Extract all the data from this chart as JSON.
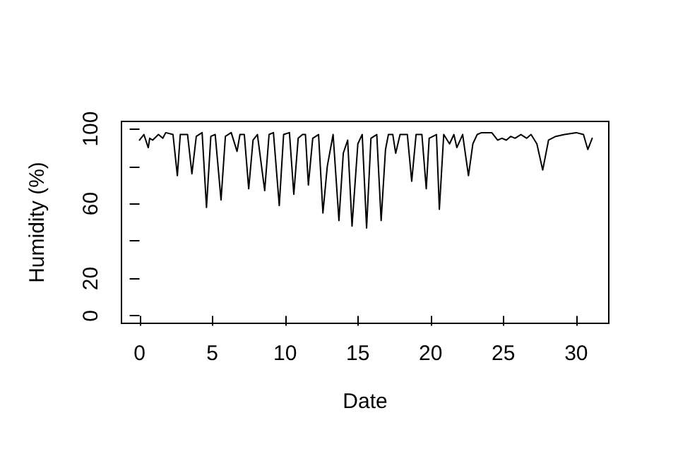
{
  "chart_data": {
    "type": "line",
    "xlabel": "Date",
    "ylabel": "Humidity (%)",
    "xlim": [
      -1.24,
      32.24
    ],
    "ylim": [
      -4,
      104
    ],
    "xticks": [
      0,
      5,
      10,
      15,
      20,
      25,
      30
    ],
    "yticks": [
      0,
      20,
      {
        "value": 40,
        "label": null
      },
      60,
      {
        "value": 80,
        "label": null
      },
      100
    ],
    "grid": false,
    "marker": "none",
    "line_style": "solid",
    "series": [
      {
        "color": "#000000",
        "x": [
          0,
          0.3,
          0.6,
          0.7,
          0.9,
          1.3,
          1.6,
          1.8,
          2.3,
          2.6,
          2.8,
          3.3,
          3.6,
          3.9,
          4.3,
          4.6,
          4.9,
          5.2,
          5.6,
          5.9,
          6.3,
          6.7,
          6.9,
          7.2,
          7.5,
          7.8,
          8.1,
          8.6,
          8.9,
          9.2,
          9.6,
          9.9,
          10.3,
          10.6,
          10.9,
          11.2,
          11.4,
          11.6,
          11.9,
          12.3,
          12.6,
          12.9,
          13.3,
          13.7,
          14.0,
          14.3,
          14.6,
          15.0,
          15.3,
          15.6,
          15.9,
          16.3,
          16.6,
          16.9,
          17.1,
          17.4,
          17.6,
          17.9,
          18.4,
          18.7,
          19.0,
          19.4,
          19.7,
          19.9,
          20.4,
          20.6,
          20.9,
          21.3,
          21.6,
          21.8,
          22.2,
          22.6,
          22.9,
          23.2,
          23.5,
          24.2,
          24.6,
          24.9,
          25.2,
          25.5,
          25.8,
          26.2,
          26.6,
          26.9,
          27.3,
          27.7,
          28.1,
          28.6,
          29.2,
          30.0,
          30.5,
          30.8,
          31.1
        ],
        "values": [
          94,
          97,
          90,
          95,
          94,
          97,
          95,
          98,
          97,
          75,
          97,
          97,
          76,
          96,
          98,
          58,
          96,
          97,
          62,
          96,
          98,
          88,
          97,
          97,
          68,
          94,
          97,
          67,
          97,
          98,
          59,
          97,
          98,
          65,
          95,
          97,
          97,
          70,
          95,
          97,
          55,
          80,
          97,
          51,
          87,
          94,
          48,
          92,
          97,
          47,
          95,
          97,
          51,
          89,
          97,
          97,
          87,
          97,
          97,
          72,
          97,
          97,
          68,
          95,
          97,
          57,
          97,
          92,
          97,
          90,
          97,
          75,
          92,
          97,
          98,
          98,
          94,
          95,
          94,
          96,
          95,
          97,
          95,
          97,
          92,
          78,
          94,
          96,
          97,
          98,
          97,
          89,
          95
        ]
      }
    ]
  }
}
